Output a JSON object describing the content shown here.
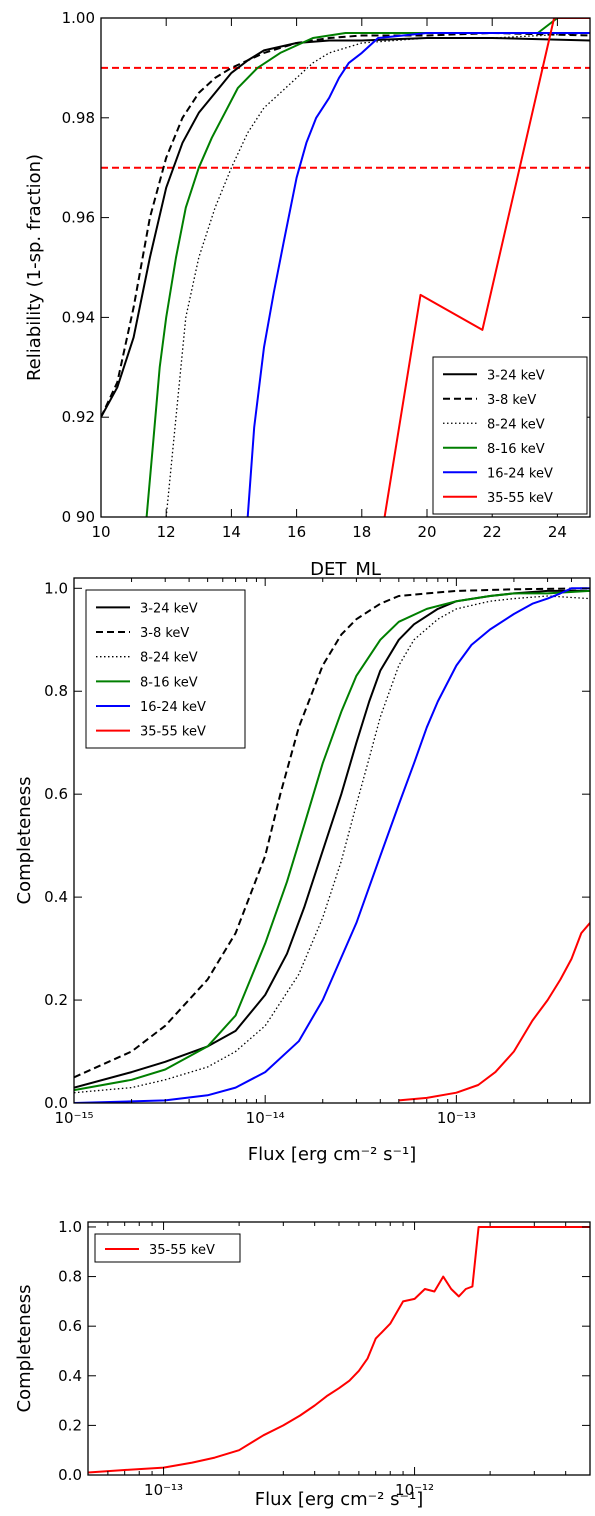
{
  "chart_data": [
    {
      "type": "line",
      "xlabel": "DET_ML",
      "ylabel": "Reliability (1-sp. fraction)",
      "xlim": [
        10,
        25
      ],
      "ylim": [
        0.9,
        1.0
      ],
      "xscale": "linear",
      "xticks": [
        10,
        12,
        14,
        16,
        18,
        20,
        22,
        24
      ],
      "xtick_labels": [
        "10",
        "12",
        "14",
        "16",
        "18",
        "20",
        "22",
        "24"
      ],
      "yticks": [
        0.9,
        0.92,
        0.94,
        0.96,
        0.98,
        1.0
      ],
      "ytick_labels": [
        "0 90",
        "0.92",
        "0.94",
        "0.96",
        "0.98",
        "1.00"
      ],
      "legend_position": "lower-right",
      "hlines": [
        {
          "y": 0.99,
          "color": "#ff0000",
          "style": "dashed"
        },
        {
          "y": 0.97,
          "color": "#ff0000",
          "style": "dashed"
        }
      ],
      "series": [
        {
          "name": "3-24 keV",
          "color": "#000000",
          "style": "solid",
          "x": [
            10,
            10.5,
            11,
            11.5,
            12,
            12.5,
            13,
            13.5,
            14,
            14.5,
            15,
            16,
            17,
            18,
            20,
            22,
            25
          ],
          "y": [
            0.92,
            0.926,
            0.936,
            0.952,
            0.966,
            0.975,
            0.981,
            0.985,
            0.989,
            0.9915,
            0.9935,
            0.995,
            0.9955,
            0.9955,
            0.996,
            0.996,
            0.9955
          ]
        },
        {
          "name": "3-8 keV",
          "color": "#000000",
          "style": "dashed",
          "x": [
            10,
            10.5,
            11,
            11.5,
            12,
            12.5,
            13,
            13.5,
            14,
            15,
            16,
            17,
            18,
            20,
            22,
            25
          ],
          "y": [
            0.92,
            0.927,
            0.942,
            0.96,
            0.972,
            0.98,
            0.985,
            0.988,
            0.99,
            0.993,
            0.995,
            0.996,
            0.9965,
            0.9965,
            0.997,
            0.9965
          ]
        },
        {
          "name": "8-24 keV",
          "color": "#000000",
          "style": "dotted",
          "x": [
            12.0,
            12.3,
            12.6,
            13,
            13.5,
            14,
            14.5,
            15,
            15.5,
            16,
            16.5,
            17,
            18,
            20,
            22,
            25
          ],
          "y": [
            0.9,
            0.92,
            0.94,
            0.952,
            0.962,
            0.97,
            0.977,
            0.982,
            0.985,
            0.988,
            0.991,
            0.993,
            0.995,
            0.996,
            0.996,
            0.997
          ]
        },
        {
          "name": "8-16 keV",
          "color": "#007f00",
          "style": "solid",
          "x": [
            11.4,
            11.6,
            11.8,
            12.0,
            12.3,
            12.6,
            13,
            13.4,
            13.8,
            14.2,
            14.8,
            15.5,
            16.5,
            17.5,
            19,
            21,
            23.4,
            24,
            25
          ],
          "y": [
            0.9,
            0.915,
            0.93,
            0.94,
            0.952,
            0.962,
            0.97,
            0.976,
            0.981,
            0.986,
            0.99,
            0.993,
            0.996,
            0.997,
            0.997,
            0.997,
            0.997,
            1.0,
            1.0
          ]
        },
        {
          "name": "16-24 keV",
          "color": "#0000ff",
          "style": "solid",
          "x": [
            14.5,
            14.7,
            15.0,
            15.3,
            15.6,
            16.0,
            16.3,
            16.6,
            17.0,
            17.3,
            17.6,
            18.0,
            18.5,
            20,
            22,
            25
          ],
          "y": [
            0.9,
            0.918,
            0.934,
            0.945,
            0.955,
            0.968,
            0.975,
            0.98,
            0.984,
            0.988,
            0.991,
            0.993,
            0.996,
            0.997,
            0.997,
            0.997
          ]
        },
        {
          "name": "35-55 keV",
          "color": "#ff0000",
          "style": "solid",
          "x": [
            18.7,
            19.8,
            21.7,
            23.9,
            25
          ],
          "y": [
            0.9,
            0.9445,
            0.9375,
            1.0,
            1.0
          ]
        }
      ]
    },
    {
      "type": "line",
      "xlabel": "Flux [erg cm⁻² s⁻¹]",
      "ylabel": "Completeness",
      "xlim": [
        1e-15,
        5e-13
      ],
      "ylim": [
        0.0,
        1.02
      ],
      "xscale": "log",
      "xticks": [
        1e-15,
        1e-14,
        1e-13
      ],
      "xtick_labels": [
        "10⁻¹⁵",
        "10⁻¹⁴",
        "10⁻¹³"
      ],
      "yticks": [
        0.0,
        0.2,
        0.4,
        0.6,
        0.8,
        1.0
      ],
      "ytick_labels": [
        "0.0",
        "0.2",
        "0.4",
        "0.6",
        "0.8",
        "1.0"
      ],
      "legend_position": "top-left",
      "series": [
        {
          "name": "3-24 keV",
          "color": "#000000",
          "style": "solid",
          "x": [
            1e-15,
            2e-15,
            3e-15,
            5e-15,
            7e-15,
            1e-14,
            1.3e-14,
            1.6e-14,
            2e-14,
            2.5e-14,
            3e-14,
            3.5e-14,
            4e-14,
            5e-14,
            6e-14,
            8e-14,
            1e-13,
            1.5e-13,
            2e-13,
            3e-13,
            5e-13
          ],
          "y": [
            0.03,
            0.06,
            0.08,
            0.11,
            0.14,
            0.21,
            0.29,
            0.38,
            0.49,
            0.6,
            0.7,
            0.78,
            0.84,
            0.9,
            0.93,
            0.96,
            0.975,
            0.985,
            0.99,
            0.995,
            0.995
          ]
        },
        {
          "name": "3-8 keV",
          "color": "#000000",
          "style": "dashed",
          "x": [
            1e-15,
            2e-15,
            3e-15,
            5e-15,
            7e-15,
            1e-14,
            1.2e-14,
            1.5e-14,
            2e-14,
            2.5e-14,
            3e-14,
            4e-14,
            5e-14,
            7e-14,
            1e-13,
            2e-13,
            5e-13
          ],
          "y": [
            0.05,
            0.1,
            0.15,
            0.24,
            0.33,
            0.48,
            0.6,
            0.73,
            0.85,
            0.91,
            0.94,
            0.97,
            0.985,
            0.99,
            0.995,
            0.998,
            1.0
          ]
        },
        {
          "name": "8-24 keV",
          "color": "#000000",
          "style": "dotted",
          "x": [
            1e-15,
            2e-15,
            3e-15,
            5e-15,
            7e-15,
            1e-14,
            1.5e-14,
            2e-14,
            2.5e-14,
            3e-14,
            3.5e-14,
            4e-14,
            5e-14,
            6e-14,
            8e-14,
            1e-13,
            1.5e-13,
            2e-13,
            3e-13,
            5e-13
          ],
          "y": [
            0.02,
            0.03,
            0.045,
            0.07,
            0.1,
            0.15,
            0.25,
            0.36,
            0.47,
            0.58,
            0.67,
            0.75,
            0.85,
            0.9,
            0.94,
            0.96,
            0.975,
            0.98,
            0.985,
            0.98
          ]
        },
        {
          "name": "8-16 keV",
          "color": "#007f00",
          "style": "solid",
          "x": [
            1e-15,
            2e-15,
            3e-15,
            5e-15,
            7e-15,
            1e-14,
            1.3e-14,
            1.6e-14,
            2e-14,
            2.5e-14,
            3e-14,
            4e-14,
            5e-14,
            7e-14,
            1e-13,
            1.5e-13,
            2e-13,
            3e-13,
            5e-13
          ],
          "y": [
            0.025,
            0.045,
            0.065,
            0.11,
            0.17,
            0.31,
            0.43,
            0.54,
            0.66,
            0.76,
            0.83,
            0.9,
            0.935,
            0.96,
            0.975,
            0.985,
            0.99,
            0.99,
            0.995
          ]
        },
        {
          "name": "16-24 keV",
          "color": "#0000ff",
          "style": "solid",
          "x": [
            1e-15,
            3e-15,
            5e-15,
            7e-15,
            1e-14,
            1.5e-14,
            2e-14,
            3e-14,
            4e-14,
            5e-14,
            6e-14,
            7e-14,
            8e-14,
            1e-13,
            1.2e-13,
            1.5e-13,
            2e-13,
            2.5e-13,
            3e-13,
            3.5e-13,
            4e-13,
            5e-13
          ],
          "y": [
            0.0,
            0.005,
            0.015,
            0.03,
            0.06,
            0.12,
            0.2,
            0.35,
            0.48,
            0.58,
            0.66,
            0.73,
            0.78,
            0.85,
            0.89,
            0.92,
            0.95,
            0.97,
            0.98,
            0.99,
            1.0,
            1.0
          ]
        },
        {
          "name": "35-55 keV",
          "color": "#ff0000",
          "style": "solid",
          "x": [
            5e-14,
            7e-14,
            1e-13,
            1.3e-13,
            1.6e-13,
            2e-13,
            2.5e-13,
            3e-13,
            3.5e-13,
            4e-13,
            4.5e-13,
            5e-13
          ],
          "y": [
            0.005,
            0.01,
            0.02,
            0.035,
            0.06,
            0.1,
            0.16,
            0.2,
            0.24,
            0.28,
            0.33,
            0.35
          ]
        }
      ]
    },
    {
      "type": "line",
      "xlabel": "Flux [erg cm⁻² s⁻¹]",
      "ylabel": "Completeness",
      "xlim": [
        5e-14,
        5e-12
      ],
      "ylim": [
        0.0,
        1.02
      ],
      "xscale": "log",
      "xticks": [
        1e-13,
        1e-12
      ],
      "xtick_labels": [
        "10⁻¹³",
        "10⁻¹²"
      ],
      "yticks": [
        0.0,
        0.2,
        0.4,
        0.6,
        0.8,
        1.0
      ],
      "ytick_labels": [
        "0.0",
        "0.2",
        "0.4",
        "0.6",
        "0.8",
        "1.0"
      ],
      "legend_position": "top-left",
      "series": [
        {
          "name": "35-55 keV",
          "color": "#ff0000",
          "style": "solid",
          "x": [
            5e-14,
            7e-14,
            1e-13,
            1.3e-13,
            1.6e-13,
            2e-13,
            2.5e-13,
            3e-13,
            3.5e-13,
            4e-13,
            4.5e-13,
            5e-13,
            5.5e-13,
            6e-13,
            6.5e-13,
            7e-13,
            8e-13,
            9e-13,
            1e-12,
            1.1e-12,
            1.2e-12,
            1.3e-12,
            1.4e-12,
            1.5e-12,
            1.6e-12,
            1.7e-12,
            1.8e-12,
            2e-12,
            3e-12,
            5e-12
          ],
          "y": [
            0.01,
            0.02,
            0.03,
            0.05,
            0.07,
            0.1,
            0.16,
            0.2,
            0.24,
            0.28,
            0.32,
            0.35,
            0.38,
            0.42,
            0.47,
            0.55,
            0.61,
            0.7,
            0.71,
            0.75,
            0.74,
            0.8,
            0.75,
            0.72,
            0.75,
            0.76,
            1.0,
            1.0,
            1.0,
            1.0
          ]
        }
      ]
    }
  ]
}
